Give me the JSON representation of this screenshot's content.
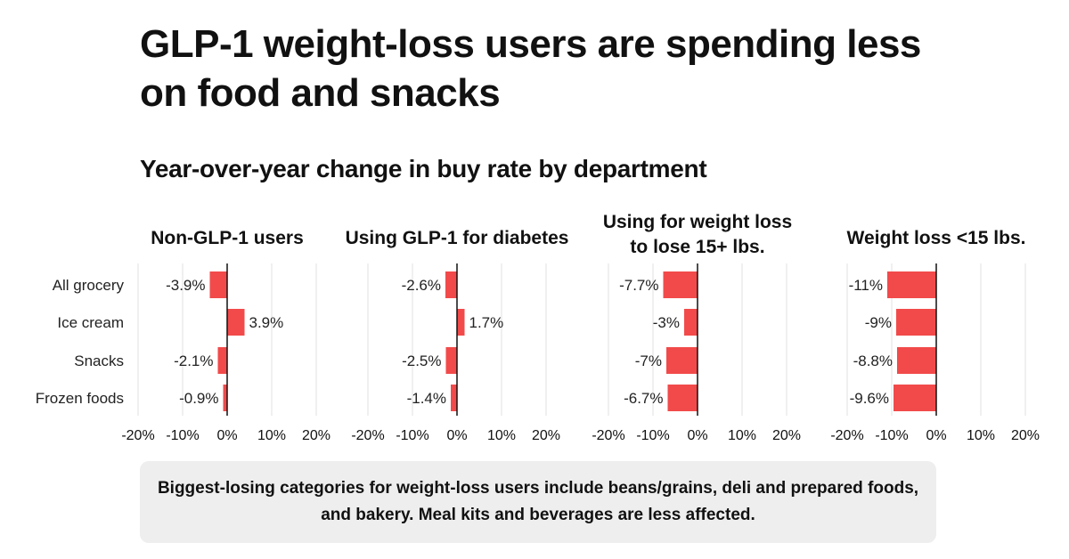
{
  "header": {
    "title": "GLP-1 weight-loss users are spending less on food and snacks",
    "subtitle": "Year-over-year change in buy rate by department"
  },
  "footer": {
    "note": "Biggest-losing categories for weight-loss users include beans/grains, deli and prepared foods, and bakery. Meal kits and beverages are less affected."
  },
  "chart_data": {
    "type": "bar",
    "orientation": "horizontal",
    "title": "Year-over-year change in buy rate by department",
    "categories": [
      "All grocery",
      "Ice cream",
      "Snacks",
      "Frozen foods"
    ],
    "xlim": [
      -20,
      20
    ],
    "xticks": [
      -20,
      -10,
      0,
      10,
      20
    ],
    "xtick_labels": [
      "-20%",
      "-10%",
      "0%",
      "10%",
      "20%"
    ],
    "grid": "vertical",
    "bar_color": "#f24a4a",
    "panels": [
      {
        "title": [
          "Non-GLP-1 users"
        ],
        "values": [
          -3.9,
          3.9,
          -2.1,
          -0.9
        ],
        "labels": [
          "-3.9%",
          "3.9%",
          "-2.1%",
          "-0.9%"
        ]
      },
      {
        "title": [
          "Using GLP-1 for diabetes"
        ],
        "values": [
          -2.6,
          1.7,
          -2.5,
          -1.4
        ],
        "labels": [
          "-2.6%",
          "1.7%",
          "-2.5%",
          "-1.4%"
        ]
      },
      {
        "title": [
          "Using for weight loss",
          "to lose 15+ lbs."
        ],
        "values": [
          -7.7,
          -3,
          -7,
          -6.7
        ],
        "labels": [
          "-7.7%",
          "-3%",
          "-7%",
          "-6.7%"
        ]
      },
      {
        "title": [
          "Weight loss <15 lbs."
        ],
        "values": [
          -11,
          -9,
          -8.8,
          -9.6
        ],
        "labels": [
          "-11%",
          "-9%",
          "-8.8%",
          "-9.6%"
        ]
      }
    ]
  }
}
